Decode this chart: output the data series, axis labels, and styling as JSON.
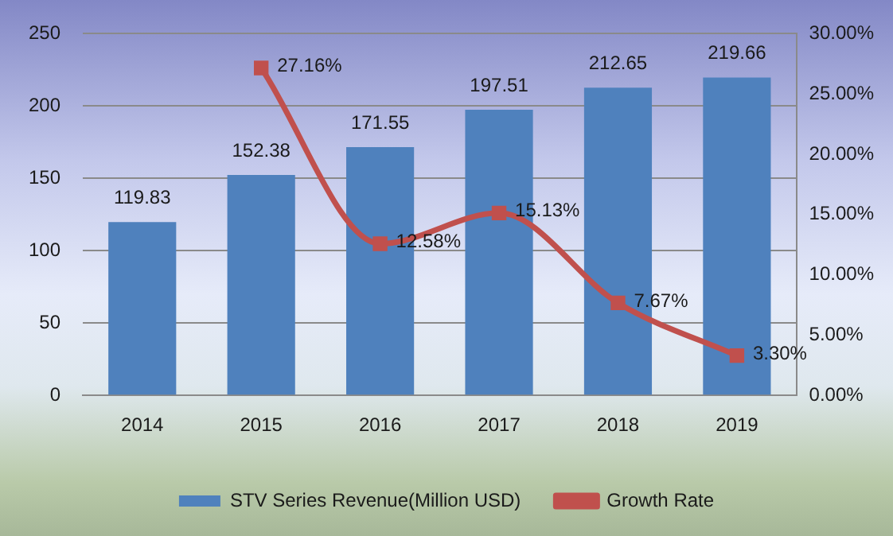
{
  "chart_data": {
    "type": "bar",
    "categories": [
      "2014",
      "2015",
      "2016",
      "2017",
      "2018",
      "2019"
    ],
    "series": [
      {
        "name": "STV Series Revenue(Million USD)",
        "color": "#4f81bd",
        "values": [
          119.83,
          152.38,
          171.55,
          197.51,
          212.65,
          219.66
        ],
        "value_labels": [
          "119.83",
          "152.38",
          "171.55",
          "197.51",
          "212.65",
          "219.66"
        ]
      },
      {
        "name": "Growth Rate",
        "type": "line",
        "axis": "y2",
        "color": "#c0504d",
        "marker": "square",
        "values": [
          null,
          27.16,
          12.58,
          15.13,
          7.67,
          3.3
        ],
        "value_labels": [
          null,
          "27.16%",
          "12.58%",
          "15.13%",
          "7.67%",
          "3.30%"
        ]
      }
    ],
    "ylim": [
      0,
      250
    ],
    "yticks": [
      0,
      50,
      100,
      150,
      200,
      250
    ],
    "y2lim": [
      0,
      30
    ],
    "y2ticks": [
      {
        "value": 0,
        "label": "0.00%"
      },
      {
        "value": 5,
        "label": "5.00%"
      },
      {
        "value": 10,
        "label": "10.00%"
      },
      {
        "value": 15,
        "label": "15.00%"
      },
      {
        "value": 20,
        "label": "20.00%"
      },
      {
        "value": 25,
        "label": "25.00%"
      },
      {
        "value": 30,
        "label": "30.00%"
      }
    ],
    "grid": "y",
    "legend": "bottom"
  }
}
